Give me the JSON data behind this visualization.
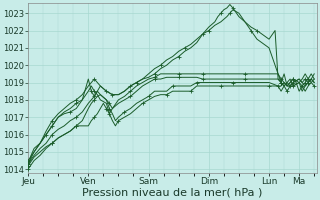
{
  "background_color": "#c8ece8",
  "grid_color": "#a8d8d0",
  "line_color": "#1a5c2a",
  "xlabel": "Pression niveau de la mer( hPa )",
  "xlabel_fontsize": 8,
  "ylim": [
    1013.8,
    1023.6
  ],
  "yticks": [
    1014,
    1015,
    1016,
    1017,
    1018,
    1019,
    1020,
    1021,
    1022,
    1023
  ],
  "xtick_labels": [
    "Jeu",
    "Ven",
    "Sam",
    "Dim",
    "Lun",
    "Ma"
  ],
  "xtick_positions": [
    0,
    1,
    2,
    3,
    4,
    4.5
  ],
  "total_days": 4.8,
  "series": [
    {
      "data": [
        [
          0.0,
          1014.2
        ],
        [
          0.05,
          1014.8
        ],
        [
          0.1,
          1015.2
        ],
        [
          0.2,
          1015.5
        ],
        [
          0.3,
          1016.0
        ],
        [
          0.4,
          1016.5
        ],
        [
          0.5,
          1017.0
        ],
        [
          0.6,
          1017.2
        ],
        [
          0.7,
          1017.3
        ],
        [
          0.8,
          1017.5
        ],
        [
          0.9,
          1018.0
        ],
        [
          1.0,
          1019.2
        ],
        [
          1.05,
          1018.5
        ],
        [
          1.1,
          1018.2
        ],
        [
          1.15,
          1018.5
        ],
        [
          1.2,
          1018.8
        ],
        [
          1.3,
          1018.5
        ],
        [
          1.4,
          1018.3
        ],
        [
          1.5,
          1018.3
        ],
        [
          1.6,
          1018.5
        ],
        [
          1.7,
          1018.8
        ],
        [
          1.8,
          1019.0
        ],
        [
          1.9,
          1019.2
        ],
        [
          2.0,
          1019.3
        ],
        [
          2.1,
          1019.5
        ],
        [
          2.2,
          1019.8
        ],
        [
          2.3,
          1020.0
        ],
        [
          2.4,
          1020.3
        ],
        [
          2.5,
          1020.5
        ],
        [
          2.6,
          1020.8
        ],
        [
          2.7,
          1021.0
        ],
        [
          2.8,
          1021.3
        ],
        [
          2.9,
          1021.8
        ],
        [
          3.0,
          1022.2
        ],
        [
          3.1,
          1022.5
        ],
        [
          3.15,
          1022.8
        ],
        [
          3.2,
          1023.0
        ],
        [
          3.25,
          1023.2
        ],
        [
          3.3,
          1023.3
        ],
        [
          3.35,
          1023.5
        ],
        [
          3.4,
          1023.3
        ],
        [
          3.5,
          1022.8
        ],
        [
          3.6,
          1022.5
        ],
        [
          3.7,
          1022.2
        ],
        [
          3.8,
          1022.0
        ],
        [
          4.0,
          1021.5
        ],
        [
          4.1,
          1022.0
        ],
        [
          4.15,
          1019.2
        ],
        [
          4.2,
          1019.0
        ],
        [
          4.25,
          1019.5
        ],
        [
          4.3,
          1018.8
        ],
        [
          4.35,
          1019.0
        ],
        [
          4.4,
          1019.2
        ],
        [
          4.45,
          1019.0
        ],
        [
          4.5,
          1018.5
        ],
        [
          4.55,
          1018.8
        ],
        [
          4.6,
          1019.0
        ],
        [
          4.65,
          1019.2
        ],
        [
          4.7,
          1019.5
        ],
        [
          4.75,
          1019.2
        ]
      ]
    },
    {
      "data": [
        [
          0.0,
          1014.3
        ],
        [
          0.1,
          1015.0
        ],
        [
          0.2,
          1015.5
        ],
        [
          0.3,
          1016.2
        ],
        [
          0.4,
          1016.8
        ],
        [
          0.5,
          1017.2
        ],
        [
          0.6,
          1017.5
        ],
        [
          0.7,
          1017.8
        ],
        [
          0.8,
          1018.0
        ],
        [
          0.9,
          1018.3
        ],
        [
          1.0,
          1018.8
        ],
        [
          1.05,
          1019.0
        ],
        [
          1.1,
          1019.2
        ],
        [
          1.15,
          1019.0
        ],
        [
          1.2,
          1018.8
        ],
        [
          1.3,
          1018.5
        ],
        [
          1.4,
          1018.3
        ],
        [
          1.5,
          1018.3
        ],
        [
          1.6,
          1018.5
        ],
        [
          1.7,
          1018.8
        ],
        [
          1.8,
          1019.0
        ],
        [
          1.9,
          1019.2
        ],
        [
          2.0,
          1019.5
        ],
        [
          2.1,
          1019.8
        ],
        [
          2.2,
          1020.0
        ],
        [
          2.3,
          1020.3
        ],
        [
          2.4,
          1020.5
        ],
        [
          2.5,
          1020.8
        ],
        [
          2.6,
          1021.0
        ],
        [
          2.7,
          1021.2
        ],
        [
          2.8,
          1021.5
        ],
        [
          2.9,
          1021.8
        ],
        [
          3.0,
          1022.0
        ],
        [
          3.1,
          1022.3
        ],
        [
          3.2,
          1022.5
        ],
        [
          3.3,
          1022.8
        ],
        [
          3.35,
          1023.0
        ],
        [
          3.4,
          1023.2
        ],
        [
          3.5,
          1023.0
        ],
        [
          3.6,
          1022.5
        ],
        [
          3.7,
          1022.0
        ],
        [
          3.8,
          1021.5
        ],
        [
          4.0,
          1021.0
        ],
        [
          4.15,
          1019.5
        ],
        [
          4.2,
          1019.0
        ],
        [
          4.25,
          1018.8
        ],
        [
          4.3,
          1019.0
        ],
        [
          4.35,
          1019.2
        ],
        [
          4.4,
          1018.8
        ],
        [
          4.5,
          1019.0
        ],
        [
          4.55,
          1018.5
        ],
        [
          4.6,
          1018.8
        ],
        [
          4.65,
          1019.0
        ],
        [
          4.7,
          1019.2
        ],
        [
          4.75,
          1019.5
        ]
      ]
    },
    {
      "data": [
        [
          0.0,
          1014.5
        ],
        [
          0.1,
          1015.0
        ],
        [
          0.2,
          1015.5
        ],
        [
          0.3,
          1016.0
        ],
        [
          0.4,
          1016.5
        ],
        [
          0.5,
          1017.0
        ],
        [
          0.6,
          1017.3
        ],
        [
          0.7,
          1017.5
        ],
        [
          0.8,
          1017.8
        ],
        [
          0.9,
          1018.0
        ],
        [
          1.0,
          1018.5
        ],
        [
          1.05,
          1018.8
        ],
        [
          1.1,
          1018.5
        ],
        [
          1.15,
          1018.3
        ],
        [
          1.2,
          1018.0
        ],
        [
          1.3,
          1017.8
        ],
        [
          1.35,
          1017.2
        ],
        [
          1.4,
          1017.5
        ],
        [
          1.5,
          1018.0
        ],
        [
          1.6,
          1018.2
        ],
        [
          1.7,
          1018.5
        ],
        [
          1.8,
          1018.8
        ],
        [
          1.9,
          1019.0
        ],
        [
          2.0,
          1019.2
        ],
        [
          2.1,
          1019.3
        ],
        [
          2.2,
          1019.5
        ],
        [
          2.3,
          1019.5
        ],
        [
          2.4,
          1019.5
        ],
        [
          2.5,
          1019.5
        ],
        [
          2.6,
          1019.5
        ],
        [
          2.7,
          1019.5
        ],
        [
          2.8,
          1019.5
        ],
        [
          2.9,
          1019.5
        ],
        [
          3.0,
          1019.5
        ],
        [
          3.2,
          1019.5
        ],
        [
          3.4,
          1019.5
        ],
        [
          3.6,
          1019.5
        ],
        [
          3.8,
          1019.5
        ],
        [
          4.0,
          1019.5
        ],
        [
          4.15,
          1019.5
        ],
        [
          4.2,
          1019.2
        ],
        [
          4.25,
          1019.0
        ],
        [
          4.3,
          1018.8
        ],
        [
          4.35,
          1019.0
        ],
        [
          4.4,
          1019.2
        ],
        [
          4.5,
          1019.0
        ],
        [
          4.55,
          1019.2
        ],
        [
          4.6,
          1019.5
        ],
        [
          4.65,
          1019.2
        ],
        [
          4.7,
          1019.0
        ],
        [
          4.75,
          1019.2
        ]
      ]
    },
    {
      "data": [
        [
          0.0,
          1014.3
        ],
        [
          0.1,
          1014.8
        ],
        [
          0.2,
          1015.2
        ],
        [
          0.3,
          1015.5
        ],
        [
          0.4,
          1016.0
        ],
        [
          0.5,
          1016.3
        ],
        [
          0.6,
          1016.5
        ],
        [
          0.7,
          1016.8
        ],
        [
          0.8,
          1017.0
        ],
        [
          0.9,
          1017.3
        ],
        [
          1.0,
          1017.8
        ],
        [
          1.05,
          1018.0
        ],
        [
          1.1,
          1018.2
        ],
        [
          1.15,
          1018.5
        ],
        [
          1.2,
          1018.3
        ],
        [
          1.3,
          1018.0
        ],
        [
          1.35,
          1017.8
        ],
        [
          1.4,
          1017.5
        ],
        [
          1.5,
          1017.8
        ],
        [
          1.6,
          1018.0
        ],
        [
          1.7,
          1018.2
        ],
        [
          1.8,
          1018.5
        ],
        [
          1.9,
          1018.8
        ],
        [
          2.0,
          1019.0
        ],
        [
          2.1,
          1019.2
        ],
        [
          2.2,
          1019.2
        ],
        [
          2.3,
          1019.3
        ],
        [
          2.4,
          1019.3
        ],
        [
          2.5,
          1019.3
        ],
        [
          2.6,
          1019.3
        ],
        [
          2.7,
          1019.3
        ],
        [
          2.8,
          1019.3
        ],
        [
          2.9,
          1019.2
        ],
        [
          3.0,
          1019.2
        ],
        [
          3.2,
          1019.2
        ],
        [
          3.4,
          1019.2
        ],
        [
          3.6,
          1019.2
        ],
        [
          3.8,
          1019.2
        ],
        [
          4.0,
          1019.2
        ],
        [
          4.15,
          1019.2
        ],
        [
          4.2,
          1019.0
        ],
        [
          4.25,
          1018.8
        ],
        [
          4.3,
          1019.0
        ],
        [
          4.35,
          1018.8
        ],
        [
          4.4,
          1019.0
        ],
        [
          4.5,
          1019.2
        ],
        [
          4.55,
          1019.0
        ],
        [
          4.6,
          1018.8
        ],
        [
          4.65,
          1019.0
        ],
        [
          4.7,
          1019.2
        ],
        [
          4.75,
          1019.0
        ]
      ]
    },
    {
      "data": [
        [
          0.0,
          1014.2
        ],
        [
          0.1,
          1014.7
        ],
        [
          0.2,
          1015.0
        ],
        [
          0.3,
          1015.3
        ],
        [
          0.4,
          1015.5
        ],
        [
          0.5,
          1015.8
        ],
        [
          0.6,
          1016.0
        ],
        [
          0.7,
          1016.2
        ],
        [
          0.8,
          1016.5
        ],
        [
          0.9,
          1016.8
        ],
        [
          1.0,
          1017.5
        ],
        [
          1.05,
          1017.8
        ],
        [
          1.1,
          1018.0
        ],
        [
          1.15,
          1018.2
        ],
        [
          1.2,
          1018.3
        ],
        [
          1.3,
          1018.0
        ],
        [
          1.35,
          1017.5
        ],
        [
          1.4,
          1017.2
        ],
        [
          1.45,
          1016.8
        ],
        [
          1.5,
          1017.0
        ],
        [
          1.6,
          1017.3
        ],
        [
          1.7,
          1017.5
        ],
        [
          1.8,
          1017.8
        ],
        [
          1.9,
          1018.0
        ],
        [
          2.0,
          1018.2
        ],
        [
          2.1,
          1018.5
        ],
        [
          2.2,
          1018.5
        ],
        [
          2.3,
          1018.5
        ],
        [
          2.4,
          1018.8
        ],
        [
          2.5,
          1018.8
        ],
        [
          2.6,
          1018.8
        ],
        [
          2.7,
          1018.8
        ],
        [
          2.8,
          1019.0
        ],
        [
          2.9,
          1019.0
        ],
        [
          3.0,
          1019.0
        ],
        [
          3.2,
          1019.0
        ],
        [
          3.4,
          1019.0
        ],
        [
          3.6,
          1019.0
        ],
        [
          3.8,
          1019.0
        ],
        [
          4.0,
          1019.0
        ],
        [
          4.15,
          1018.8
        ],
        [
          4.2,
          1018.8
        ],
        [
          4.25,
          1019.0
        ],
        [
          4.3,
          1018.8
        ],
        [
          4.35,
          1018.8
        ],
        [
          4.4,
          1019.0
        ],
        [
          4.5,
          1019.2
        ],
        [
          4.55,
          1019.0
        ],
        [
          4.6,
          1019.2
        ],
        [
          4.65,
          1019.0
        ],
        [
          4.7,
          1019.2
        ],
        [
          4.75,
          1019.0
        ]
      ]
    },
    {
      "data": [
        [
          0.0,
          1014.0
        ],
        [
          0.1,
          1014.5
        ],
        [
          0.2,
          1014.8
        ],
        [
          0.3,
          1015.2
        ],
        [
          0.4,
          1015.5
        ],
        [
          0.5,
          1015.8
        ],
        [
          0.6,
          1016.0
        ],
        [
          0.7,
          1016.2
        ],
        [
          0.8,
          1016.5
        ],
        [
          0.9,
          1016.5
        ],
        [
          1.0,
          1016.5
        ],
        [
          1.05,
          1016.8
        ],
        [
          1.1,
          1017.0
        ],
        [
          1.15,
          1017.2
        ],
        [
          1.2,
          1017.5
        ],
        [
          1.25,
          1017.8
        ],
        [
          1.3,
          1017.5
        ],
        [
          1.35,
          1017.2
        ],
        [
          1.4,
          1016.8
        ],
        [
          1.45,
          1016.5
        ],
        [
          1.5,
          1016.8
        ],
        [
          1.6,
          1017.0
        ],
        [
          1.7,
          1017.2
        ],
        [
          1.8,
          1017.5
        ],
        [
          1.9,
          1017.8
        ],
        [
          2.0,
          1018.0
        ],
        [
          2.1,
          1018.2
        ],
        [
          2.2,
          1018.3
        ],
        [
          2.3,
          1018.3
        ],
        [
          2.4,
          1018.5
        ],
        [
          2.5,
          1018.5
        ],
        [
          2.6,
          1018.5
        ],
        [
          2.7,
          1018.5
        ],
        [
          2.8,
          1018.8
        ],
        [
          2.9,
          1018.8
        ],
        [
          3.0,
          1018.8
        ],
        [
          3.2,
          1018.8
        ],
        [
          3.4,
          1018.8
        ],
        [
          3.6,
          1018.8
        ],
        [
          3.8,
          1018.8
        ],
        [
          4.0,
          1018.8
        ],
        [
          4.15,
          1018.8
        ],
        [
          4.2,
          1018.5
        ],
        [
          4.25,
          1018.8
        ],
        [
          4.3,
          1018.5
        ],
        [
          4.35,
          1018.8
        ],
        [
          4.4,
          1018.8
        ],
        [
          4.5,
          1019.0
        ],
        [
          4.55,
          1018.8
        ],
        [
          4.6,
          1018.5
        ],
        [
          4.65,
          1018.8
        ],
        [
          4.7,
          1019.0
        ],
        [
          4.75,
          1018.8
        ]
      ]
    }
  ]
}
